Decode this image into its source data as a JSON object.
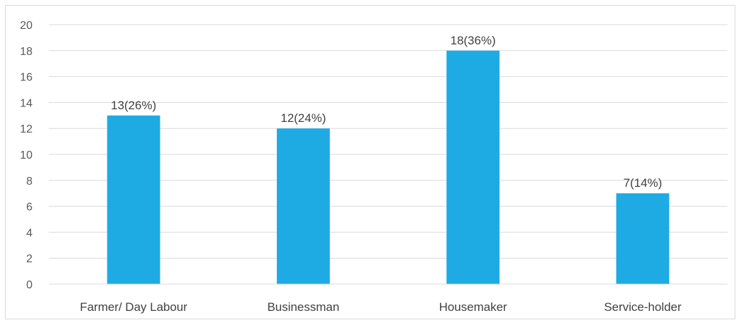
{
  "chart_data": {
    "type": "bar",
    "categories": [
      "Farmer/ Day Labour",
      "Businessman",
      "Housemaker",
      "Service-holder"
    ],
    "values": [
      13,
      12,
      18,
      7
    ],
    "data_labels": [
      "13(26%)",
      "12(24%)",
      "18(36%)",
      "7(14%)"
    ],
    "ylim": [
      0,
      20
    ],
    "yticks": [
      "0",
      "2",
      "4",
      "6",
      "8",
      "10",
      "12",
      "14",
      "16",
      "18",
      "20"
    ],
    "grid": true,
    "bar_color": "#1eabe3",
    "grid_color": "#d9d9d9"
  }
}
